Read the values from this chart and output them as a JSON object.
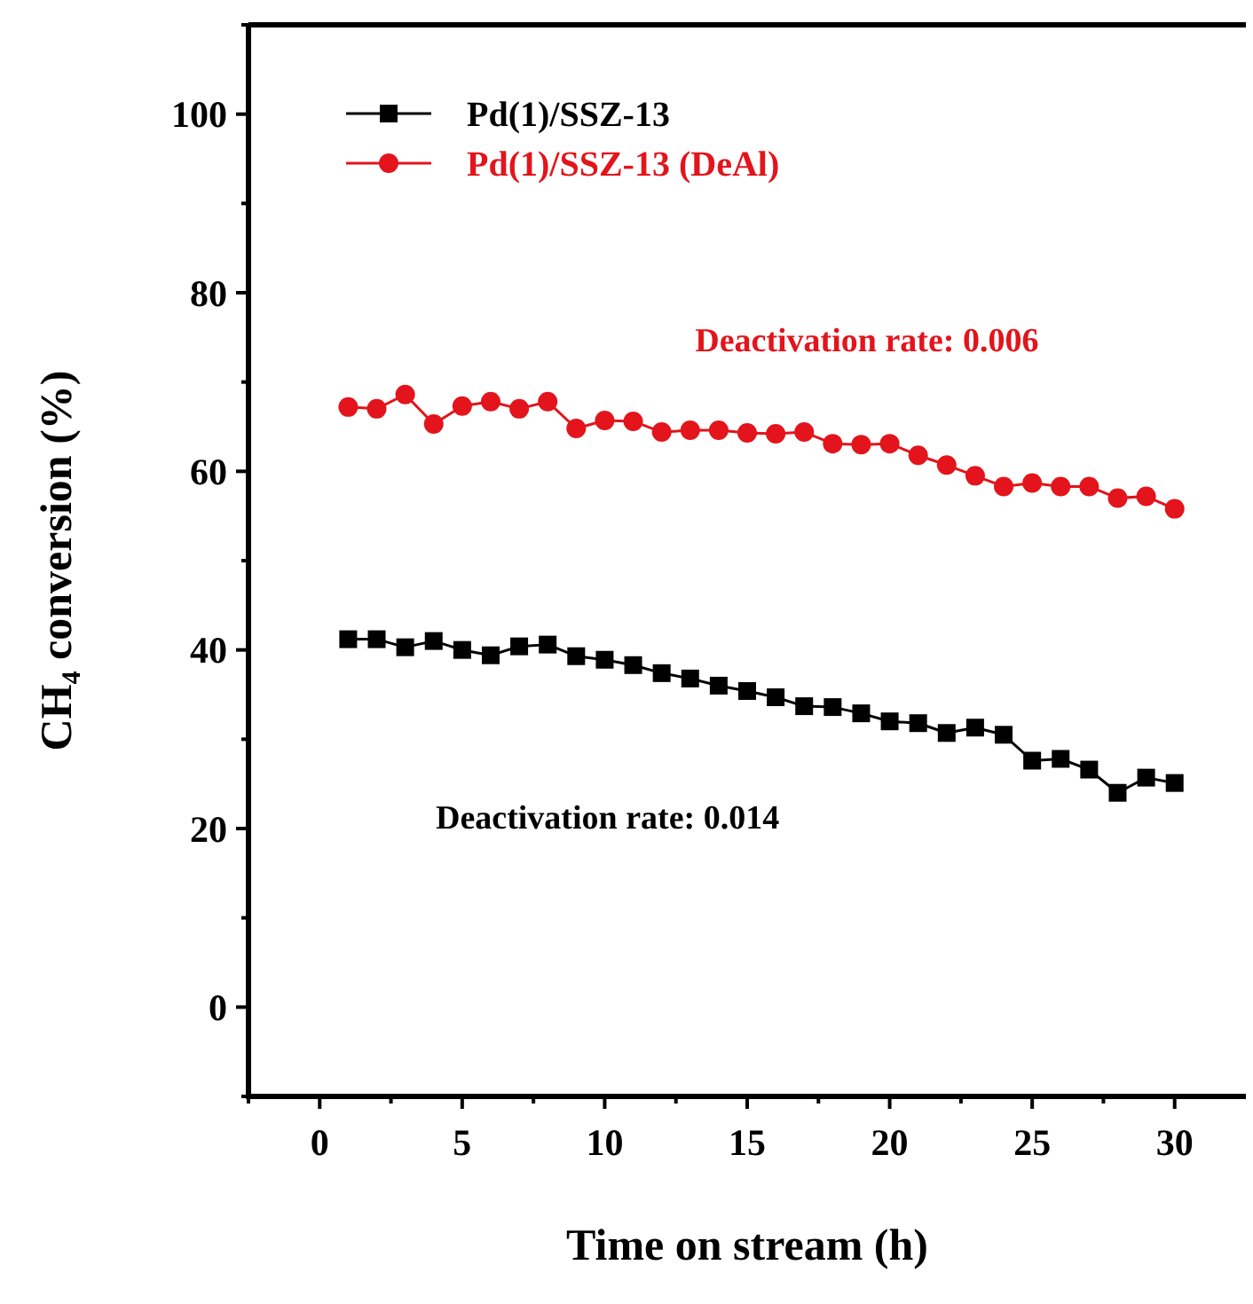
{
  "chart_data": {
    "type": "line",
    "xlabel": "Time on stream (h)",
    "ylabel": "CH₄ conversion (%)",
    "x": [
      1,
      2,
      3,
      4,
      5,
      6,
      7,
      8,
      9,
      10,
      11,
      12,
      13,
      14,
      15,
      16,
      17,
      18,
      19,
      20,
      21,
      22,
      23,
      24,
      25,
      26,
      27,
      28,
      29,
      30
    ],
    "series": [
      {
        "name": "Pd(1)/SSZ-13",
        "color": "#000000",
        "marker": "square",
        "values": [
          41.2,
          41.2,
          40.3,
          41,
          40,
          39.4,
          40.4,
          40.6,
          39.3,
          38.9,
          38.3,
          37.4,
          36.8,
          36,
          35.4,
          34.7,
          33.7,
          33.6,
          32.9,
          32,
          31.8,
          30.7,
          31.3,
          30.5,
          27.6,
          27.8,
          26.6,
          24,
          25.7,
          25.1
        ]
      },
      {
        "name": "Pd(1)/SSZ-13 (DeAl)",
        "color": "#e3141b",
        "marker": "circle",
        "values": [
          67.2,
          67,
          68.6,
          65.3,
          67.3,
          67.8,
          67,
          67.8,
          64.8,
          65.7,
          65.6,
          64.4,
          64.6,
          64.6,
          64.3,
          64.2,
          64.4,
          63.1,
          63,
          63.1,
          61.8,
          60.7,
          59.5,
          58.3,
          58.7,
          58.3,
          58.3,
          57,
          57.2,
          55.8
        ]
      }
    ],
    "annotations": [
      "Deactivation rate: 0.006",
      "Deactivation rate: 0.014"
    ],
    "xlim": [
      -2.5,
      32.5
    ],
    "xticks": [
      0,
      5,
      10,
      15,
      20,
      25,
      30
    ],
    "ylim": [
      -10,
      110
    ],
    "yticks": [
      0,
      20,
      40,
      60,
      80,
      100
    ],
    "legend": "top left",
    "grid": false,
    "line_style": "solid"
  }
}
